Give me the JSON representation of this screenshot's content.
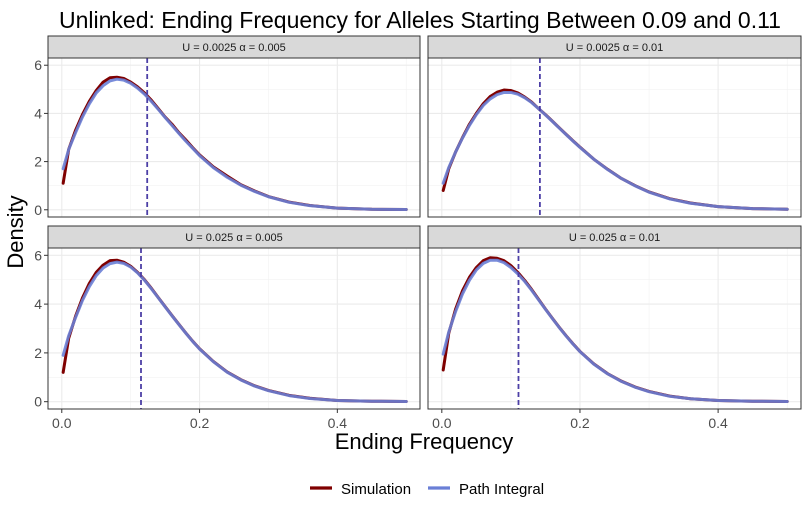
{
  "chart_data": {
    "type": "line",
    "title": "Unlinked: Ending Frequency for Alleles Starting Between 0.09 and 0.11",
    "xlabel": "Ending Frequency",
    "ylabel": "Density",
    "xlim": [
      -0.02,
      0.52
    ],
    "ylim": [
      -0.3,
      6.3
    ],
    "x_ticks": [
      0.0,
      0.2,
      0.4
    ],
    "x_tick_labels": [
      "0.0",
      "0.2",
      "0.4"
    ],
    "y_ticks": [
      0,
      2,
      4,
      6
    ],
    "y_tick_labels": [
      "0",
      "2",
      "4",
      "6"
    ],
    "grid": true,
    "legend_position": "bottom",
    "colors": {
      "simulation": "#7f0000",
      "path_integral": "#6a7fd6",
      "vline": "#4c3fa6",
      "strip": "#d9d9d9"
    },
    "legend": [
      {
        "key": "simulation",
        "label": "Simulation"
      },
      {
        "key": "path_integral",
        "label": "Path Integral"
      }
    ],
    "panels": [
      {
        "label": "U = 0.0025 α = 0.005",
        "vline_x": 0.124,
        "simulation": {
          "x": [
            0.002,
            0.01,
            0.02,
            0.03,
            0.04,
            0.05,
            0.06,
            0.07,
            0.08,
            0.09,
            0.1,
            0.11,
            0.12,
            0.13,
            0.14,
            0.15,
            0.16,
            0.17,
            0.18,
            0.19,
            0.2,
            0.22,
            0.24,
            0.26,
            0.28,
            0.3,
            0.33,
            0.36,
            0.4,
            0.45,
            0.5
          ],
          "y": [
            1.1,
            2.5,
            3.3,
            3.95,
            4.5,
            4.95,
            5.3,
            5.48,
            5.5,
            5.45,
            5.3,
            5.1,
            4.85,
            4.55,
            4.2,
            3.85,
            3.55,
            3.2,
            2.9,
            2.58,
            2.28,
            1.78,
            1.4,
            1.04,
            0.78,
            0.55,
            0.32,
            0.18,
            0.07,
            0.02,
            0.01
          ]
        },
        "path_integral": {
          "x": [
            0.002,
            0.01,
            0.02,
            0.03,
            0.04,
            0.05,
            0.06,
            0.07,
            0.08,
            0.09,
            0.1,
            0.11,
            0.12,
            0.13,
            0.14,
            0.15,
            0.16,
            0.17,
            0.18,
            0.19,
            0.2,
            0.22,
            0.24,
            0.26,
            0.28,
            0.3,
            0.33,
            0.36,
            0.4,
            0.45,
            0.5
          ],
          "y": [
            1.7,
            2.5,
            3.2,
            3.85,
            4.4,
            4.85,
            5.15,
            5.35,
            5.42,
            5.38,
            5.25,
            5.05,
            4.8,
            4.5,
            4.17,
            3.83,
            3.5,
            3.17,
            2.85,
            2.55,
            2.25,
            1.75,
            1.35,
            1.02,
            0.76,
            0.54,
            0.31,
            0.17,
            0.07,
            0.02,
            0.01
          ]
        }
      },
      {
        "label": "U = 0.0025 α = 0.01",
        "vline_x": 0.142,
        "simulation": {
          "x": [
            0.002,
            0.01,
            0.02,
            0.03,
            0.04,
            0.05,
            0.06,
            0.07,
            0.08,
            0.09,
            0.1,
            0.11,
            0.12,
            0.13,
            0.14,
            0.15,
            0.16,
            0.17,
            0.18,
            0.19,
            0.2,
            0.22,
            0.24,
            0.26,
            0.28,
            0.3,
            0.33,
            0.36,
            0.4,
            0.45,
            0.5
          ],
          "y": [
            0.8,
            1.7,
            2.4,
            3.0,
            3.55,
            4.0,
            4.4,
            4.7,
            4.88,
            4.97,
            4.95,
            4.85,
            4.68,
            4.47,
            4.2,
            3.95,
            3.68,
            3.4,
            3.13,
            2.86,
            2.6,
            2.1,
            1.68,
            1.3,
            1.0,
            0.74,
            0.46,
            0.28,
            0.13,
            0.05,
            0.02
          ]
        },
        "path_integral": {
          "x": [
            0.002,
            0.01,
            0.02,
            0.03,
            0.04,
            0.05,
            0.06,
            0.07,
            0.08,
            0.09,
            0.1,
            0.11,
            0.12,
            0.13,
            0.14,
            0.15,
            0.16,
            0.17,
            0.18,
            0.19,
            0.2,
            0.22,
            0.24,
            0.26,
            0.28,
            0.3,
            0.33,
            0.36,
            0.4,
            0.45,
            0.5
          ],
          "y": [
            1.1,
            1.75,
            2.4,
            2.98,
            3.5,
            3.95,
            4.33,
            4.6,
            4.78,
            4.87,
            4.87,
            4.8,
            4.65,
            4.45,
            4.2,
            3.94,
            3.67,
            3.39,
            3.12,
            2.85,
            2.59,
            2.1,
            1.67,
            1.3,
            0.99,
            0.73,
            0.45,
            0.27,
            0.13,
            0.05,
            0.02
          ]
        }
      },
      {
        "label": "U = 0.025 α = 0.005",
        "vline_x": 0.115,
        "simulation": {
          "x": [
            0.002,
            0.01,
            0.02,
            0.03,
            0.04,
            0.05,
            0.06,
            0.07,
            0.08,
            0.09,
            0.1,
            0.11,
            0.12,
            0.13,
            0.14,
            0.15,
            0.16,
            0.17,
            0.18,
            0.19,
            0.2,
            0.22,
            0.24,
            0.26,
            0.28,
            0.3,
            0.33,
            0.36,
            0.4,
            0.45,
            0.5
          ],
          "y": [
            1.2,
            2.6,
            3.5,
            4.25,
            4.85,
            5.3,
            5.6,
            5.78,
            5.8,
            5.72,
            5.55,
            5.3,
            5.0,
            4.65,
            4.27,
            3.9,
            3.53,
            3.17,
            2.82,
            2.48,
            2.17,
            1.65,
            1.22,
            0.9,
            0.65,
            0.46,
            0.26,
            0.14,
            0.05,
            0.02,
            0.01
          ]
        },
        "path_integral": {
          "x": [
            0.002,
            0.01,
            0.02,
            0.03,
            0.04,
            0.05,
            0.06,
            0.07,
            0.08,
            0.09,
            0.1,
            0.11,
            0.12,
            0.13,
            0.14,
            0.15,
            0.16,
            0.17,
            0.18,
            0.19,
            0.2,
            0.22,
            0.24,
            0.26,
            0.28,
            0.3,
            0.33,
            0.36,
            0.4,
            0.45,
            0.5
          ],
          "y": [
            1.9,
            2.7,
            3.45,
            4.15,
            4.72,
            5.17,
            5.48,
            5.66,
            5.72,
            5.67,
            5.52,
            5.28,
            4.98,
            4.63,
            4.26,
            3.89,
            3.52,
            3.16,
            2.81,
            2.47,
            2.16,
            1.64,
            1.21,
            0.89,
            0.64,
            0.45,
            0.25,
            0.13,
            0.05,
            0.02,
            0.01
          ]
        }
      },
      {
        "label": "U = 0.025 α = 0.01",
        "vline_x": 0.111,
        "simulation": {
          "x": [
            0.002,
            0.01,
            0.02,
            0.03,
            0.04,
            0.05,
            0.06,
            0.07,
            0.08,
            0.09,
            0.1,
            0.11,
            0.12,
            0.13,
            0.14,
            0.15,
            0.16,
            0.17,
            0.18,
            0.19,
            0.2,
            0.22,
            0.24,
            0.26,
            0.28,
            0.3,
            0.33,
            0.36,
            0.4,
            0.45,
            0.5
          ],
          "y": [
            1.3,
            2.8,
            3.8,
            4.55,
            5.1,
            5.5,
            5.78,
            5.9,
            5.88,
            5.78,
            5.58,
            5.3,
            4.97,
            4.6,
            4.2,
            3.8,
            3.42,
            3.05,
            2.7,
            2.37,
            2.06,
            1.55,
            1.15,
            0.84,
            0.6,
            0.42,
            0.23,
            0.12,
            0.05,
            0.02,
            0.01
          ]
        },
        "path_integral": {
          "x": [
            0.002,
            0.01,
            0.02,
            0.03,
            0.04,
            0.05,
            0.06,
            0.07,
            0.08,
            0.09,
            0.1,
            0.11,
            0.12,
            0.13,
            0.14,
            0.15,
            0.16,
            0.17,
            0.18,
            0.19,
            0.2,
            0.22,
            0.24,
            0.26,
            0.28,
            0.3,
            0.33,
            0.36,
            0.4,
            0.45,
            0.5
          ],
          "y": [
            1.95,
            2.85,
            3.7,
            4.42,
            4.98,
            5.4,
            5.67,
            5.8,
            5.8,
            5.7,
            5.5,
            5.24,
            4.93,
            4.57,
            4.18,
            3.79,
            3.41,
            3.04,
            2.69,
            2.36,
            2.05,
            1.54,
            1.14,
            0.83,
            0.59,
            0.41,
            0.22,
            0.12,
            0.05,
            0.02,
            0.01
          ]
        }
      }
    ]
  }
}
